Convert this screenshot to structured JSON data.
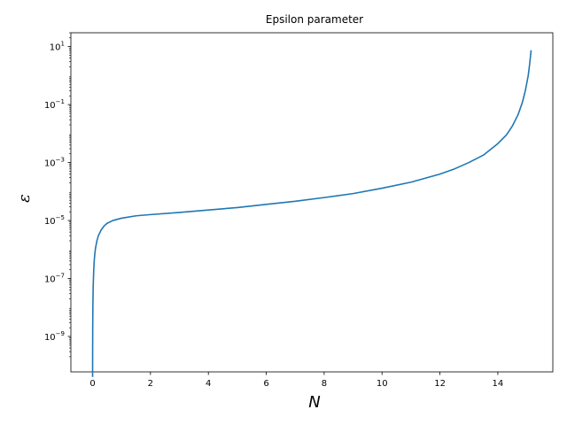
{
  "chart_data": {
    "type": "line",
    "title": "Epsilon parameter",
    "xlabel": "N",
    "ylabel": "ε",
    "yscale": "log",
    "xlim": [
      -0.75,
      15.9
    ],
    "ylim": [
      6e-11,
      30
    ],
    "x_ticks": [
      0,
      2,
      4,
      6,
      8,
      10,
      12,
      14
    ],
    "x_tick_labels": [
      "0",
      "2",
      "4",
      "6",
      "8",
      "10",
      "12",
      "14"
    ],
    "y_ticks": [
      1e-09,
      1e-07,
      1e-05,
      0.001,
      0.1,
      10
    ],
    "y_tick_labels": [
      {
        "base": "10",
        "exp": "−9"
      },
      {
        "base": "10",
        "exp": "−7"
      },
      {
        "base": "10",
        "exp": "−5"
      },
      {
        "base": "10",
        "exp": "−3"
      },
      {
        "base": "10",
        "exp": "−1"
      },
      {
        "base": "10",
        "exp": "1"
      }
    ],
    "grid": false,
    "line_color": "#1f77b4",
    "series": [
      {
        "x": [
          0,
          0.002,
          0.005,
          0.01,
          0.02,
          0.04,
          0.06,
          0.08,
          0.1,
          0.15,
          0.2,
          0.3,
          0.4,
          0.5,
          0.7,
          1.0,
          1.5,
          2,
          3,
          4,
          5,
          6,
          7,
          8,
          9,
          10,
          11,
          12,
          12.5,
          13,
          13.5,
          14,
          14.3,
          14.5,
          14.7,
          14.85,
          14.95,
          15.05,
          15.1,
          15.15
        ],
        "y": [
          4e-11,
          3e-10,
          2e-09,
          1e-08,
          5e-08,
          2e-07,
          4.5e-07,
          7.5e-07,
          1.1e-06,
          2e-06,
          3e-06,
          4.8e-06,
          6.5e-06,
          8e-06,
          1e-05,
          1.2e-05,
          1.45e-05,
          1.6e-05,
          1.9e-05,
          2.3e-05,
          2.8e-05,
          3.6e-05,
          4.6e-05,
          6.2e-05,
          8.5e-05,
          0.00013,
          0.00021,
          0.0004,
          0.0006,
          0.001,
          0.0018,
          0.0045,
          0.009,
          0.018,
          0.045,
          0.12,
          0.3,
          1.0,
          2.5,
          7.5
        ]
      }
    ]
  }
}
